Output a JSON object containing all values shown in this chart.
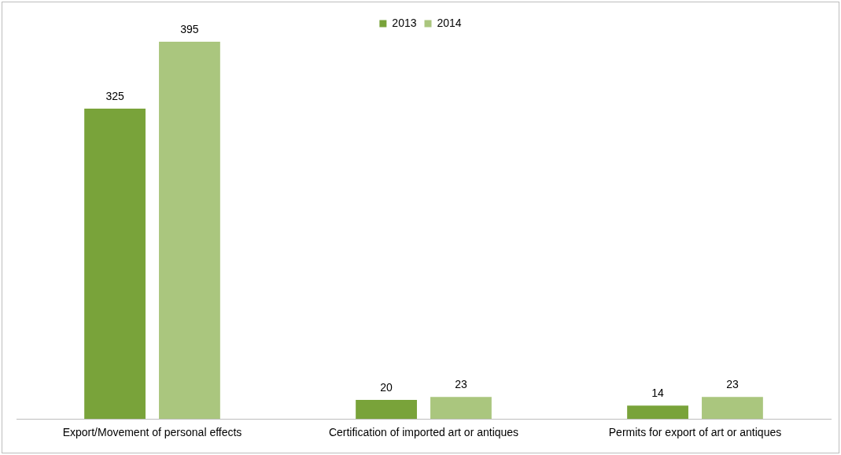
{
  "chart_data": {
    "type": "bar",
    "categories": [
      "Export/Movement of personal effects",
      "Certification of imported art or antiques",
      "Permits for export of art or antiques"
    ],
    "series": [
      {
        "name": "2013",
        "color": "#79a33a",
        "values": [
          325,
          20,
          14
        ]
      },
      {
        "name": "2014",
        "color": "#aac67e",
        "values": [
          395,
          23,
          23
        ]
      }
    ],
    "data_labels": true,
    "legend": "top",
    "grid": false,
    "tick_labels": "x"
  }
}
